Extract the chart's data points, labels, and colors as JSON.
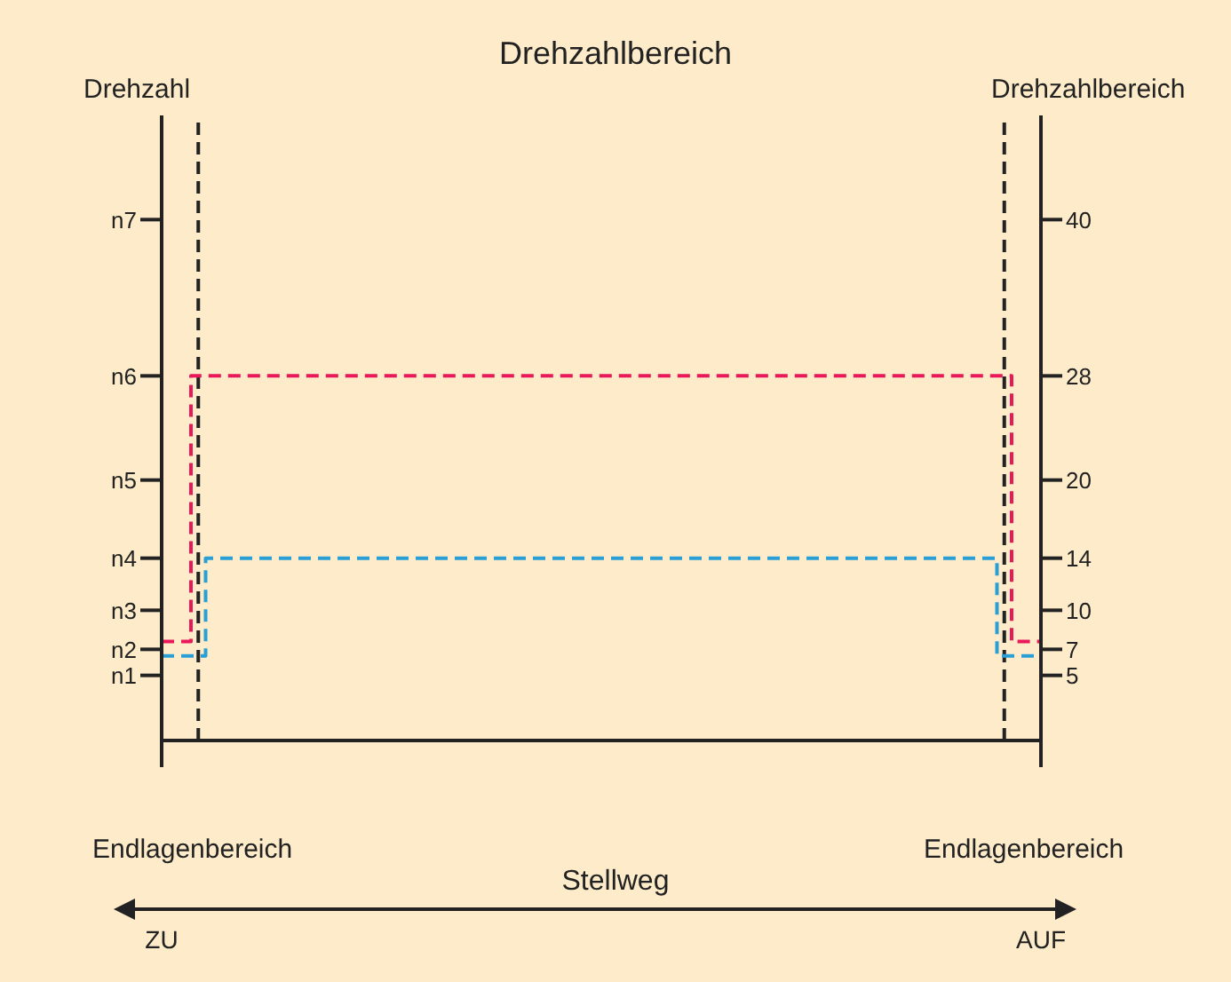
{
  "chart_data": {
    "type": "step",
    "title": "Drehzahlbereich",
    "ylabel": "Drehzahlbereich",
    "y2label": "Drehzahl",
    "xlabel": "Stellweg",
    "annotations": [
      "Endlagenbereich",
      "Endlagenbereich",
      "n1",
      "n2",
      "n3",
      "n4",
      "n5",
      "n6",
      "n7"
    ],
    "categories": [
      "ZU",
      null,
      null,
      null,
      null,
      null,
      null,
      null,
      null,
      null,
      null,
      null,
      null,
      null,
      null,
      null,
      null,
      null,
      null,
      null,
      null,
      null,
      null,
      null,
      null,
      null,
      null,
      null,
      null,
      null,
      null,
      null,
      null,
      null,
      null,
      null,
      null,
      null,
      null,
      null,
      null,
      null,
      null,
      null,
      null,
      null,
      null,
      null,
      null,
      null,
      null,
      null,
      null,
      null,
      null,
      null,
      null,
      null,
      null,
      null,
      null,
      null,
      null,
      null,
      null,
      null,
      null,
      null,
      null,
      null,
      null,
      null,
      null,
      null,
      null,
      null,
      null,
      null,
      null,
      null,
      null,
      null,
      null,
      null,
      null,
      null,
      null,
      null,
      null,
      null,
      null,
      null,
      null,
      null,
      null,
      null,
      null,
      null,
      null,
      null,
      null,
      null,
      null,
      null,
      null,
      null,
      null,
      null,
      null,
      null,
      null,
      null,
      null,
      null,
      null,
      null,
      null,
      null,
      null,
      null,
      "AUF"
    ],
    "ylim": [
      0,
      48
    ],
    "yticks": [
      5,
      7,
      10,
      14,
      20,
      28,
      40
    ],
    "series": [
      {
        "color": "#e8185a",
        "values": [
          7.6,
          7.6,
          7.6,
          7.6,
          28,
          28,
          28,
          28,
          28,
          28,
          28,
          28,
          28,
          28,
          28,
          28,
          28,
          28,
          28,
          28,
          28,
          28,
          28,
          28,
          28,
          28,
          28,
          28,
          28,
          28,
          28,
          28,
          28,
          28,
          28,
          28,
          28,
          28,
          28,
          28,
          28,
          28,
          28,
          28,
          28,
          28,
          28,
          28,
          28,
          28,
          28,
          28,
          28,
          28,
          28,
          28,
          28,
          28,
          28,
          28,
          28,
          28,
          28,
          28,
          28,
          28,
          28,
          28,
          28,
          28,
          28,
          28,
          28,
          28,
          28,
          28,
          28,
          28,
          28,
          28,
          28,
          28,
          28,
          28,
          28,
          28,
          28,
          28,
          28,
          28,
          28,
          28,
          28,
          28,
          28,
          28,
          28,
          28,
          28,
          28,
          28,
          28,
          28,
          28,
          28,
          28,
          28,
          28,
          28,
          28,
          28,
          28,
          28,
          28,
          28,
          28,
          7.6,
          7.6,
          7.6,
          7.6,
          7.6
        ]
      },
      {
        "color": "#2a9fd6",
        "values": [
          6.5,
          6.5,
          6.5,
          6.5,
          6.5,
          6.5,
          14,
          14,
          14,
          14,
          14,
          14,
          14,
          14,
          14,
          14,
          14,
          14,
          14,
          14,
          14,
          14,
          14,
          14,
          14,
          14,
          14,
          14,
          14,
          14,
          14,
          14,
          14,
          14,
          14,
          14,
          14,
          14,
          14,
          14,
          14,
          14,
          14,
          14,
          14,
          14,
          14,
          14,
          14,
          14,
          14,
          14,
          14,
          14,
          14,
          14,
          14,
          14,
          14,
          14,
          14,
          14,
          14,
          14,
          14,
          14,
          14,
          14,
          14,
          14,
          14,
          14,
          14,
          14,
          14,
          14,
          14,
          14,
          14,
          14,
          14,
          14,
          14,
          14,
          14,
          14,
          14,
          14,
          14,
          14,
          14,
          14,
          14,
          14,
          14,
          14,
          14,
          14,
          14,
          14,
          14,
          14,
          14,
          14,
          14,
          14,
          14,
          14,
          14,
          14,
          14,
          14,
          14,
          14,
          6.5,
          6.5,
          6.5,
          6.5,
          6.5,
          6.5,
          6.5
        ]
      }
    ],
    "grid": false,
    "legend": false,
    "marker": "none",
    "line_style": "dashed"
  }
}
